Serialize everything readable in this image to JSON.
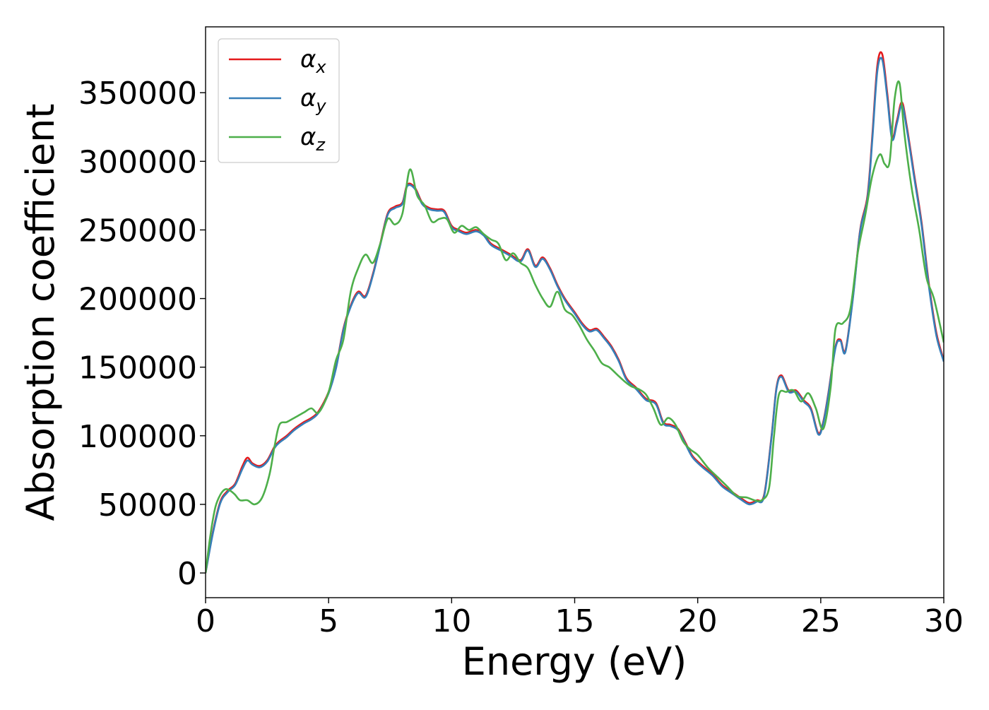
{
  "chart_data": {
    "type": "line",
    "xlabel": "Energy (eV)",
    "ylabel": "Absorption coefficient",
    "xlim": [
      0,
      30
    ],
    "ylim": [
      -18000,
      398000
    ],
    "xticks": [
      0,
      5,
      10,
      15,
      20,
      25,
      30
    ],
    "yticks": [
      0,
      50000,
      100000,
      150000,
      200000,
      250000,
      300000,
      350000
    ],
    "grid": false,
    "legend_position": "top-left",
    "series": [
      {
        "name": "α_x",
        "legend_symbol": "α",
        "legend_subscript": "x",
        "color": "#e41a1c",
        "x": [
          0,
          0.3,
          0.6,
          0.9,
          1.2,
          1.5,
          1.7,
          1.9,
          2.2,
          2.5,
          2.8,
          3.0,
          3.3,
          3.6,
          4.0,
          4.3,
          4.6,
          5.0,
          5.3,
          5.6,
          5.9,
          6.2,
          6.5,
          6.8,
          7.1,
          7.4,
          7.7,
          8.0,
          8.2,
          8.5,
          8.8,
          9.1,
          9.4,
          9.7,
          10.0,
          10.3,
          10.6,
          11.0,
          11.3,
          11.6,
          12.0,
          12.4,
          12.8,
          13.1,
          13.4,
          13.7,
          14.0,
          14.3,
          14.6,
          15.0,
          15.3,
          15.6,
          15.9,
          16.2,
          16.5,
          16.8,
          17.1,
          17.5,
          17.9,
          18.3,
          18.6,
          18.9,
          19.2,
          19.5,
          19.8,
          20.2,
          20.6,
          21.0,
          21.4,
          21.8,
          22.1,
          22.4,
          22.7,
          23.0,
          23.2,
          23.4,
          23.7,
          24.0,
          24.3,
          24.6,
          24.9,
          25.1,
          25.3,
          25.6,
          25.8,
          26.0,
          26.3,
          26.6,
          26.9,
          27.1,
          27.3,
          27.5,
          27.7,
          27.9,
          28.1,
          28.3,
          28.5,
          28.8,
          29.1,
          29.4,
          29.7,
          30.0
        ],
        "y": [
          0,
          30000,
          52000,
          60000,
          65000,
          78000,
          84000,
          80000,
          78000,
          82000,
          92000,
          96000,
          100000,
          105000,
          110000,
          113000,
          118000,
          132000,
          150000,
          178000,
          195000,
          205000,
          202000,
          218000,
          240000,
          262000,
          267000,
          270000,
          283000,
          281000,
          270000,
          266000,
          265000,
          264000,
          253000,
          250000,
          248000,
          250000,
          247000,
          240000,
          236000,
          232000,
          228000,
          236000,
          224000,
          230000,
          222000,
          210000,
          200000,
          190000,
          182000,
          177000,
          178000,
          172000,
          165000,
          155000,
          142000,
          135000,
          127000,
          124000,
          110000,
          108000,
          105000,
          95000,
          85000,
          78000,
          72000,
          64000,
          59000,
          54000,
          51000,
          53000,
          57000,
          100000,
          135000,
          144000,
          133000,
          133000,
          126000,
          120000,
          102000,
          110000,
          130000,
          165000,
          170000,
          162000,
          200000,
          250000,
          275000,
          320000,
          370000,
          378000,
          350000,
          318000,
          330000,
          343000,
          325000,
          290000,
          255000,
          210000,
          175000,
          155000
        ]
      },
      {
        "name": "α_y",
        "legend_symbol": "α",
        "legend_subscript": "y",
        "color": "#377eb8",
        "x": [
          0,
          0.3,
          0.6,
          0.9,
          1.2,
          1.5,
          1.7,
          1.9,
          2.2,
          2.5,
          2.8,
          3.0,
          3.3,
          3.6,
          4.0,
          4.3,
          4.6,
          5.0,
          5.3,
          5.6,
          5.9,
          6.2,
          6.5,
          6.8,
          7.1,
          7.4,
          7.7,
          8.0,
          8.2,
          8.5,
          8.8,
          9.1,
          9.4,
          9.7,
          10.0,
          10.3,
          10.6,
          11.0,
          11.3,
          11.6,
          12.0,
          12.4,
          12.8,
          13.1,
          13.4,
          13.7,
          14.0,
          14.3,
          14.6,
          15.0,
          15.3,
          15.6,
          15.9,
          16.2,
          16.5,
          16.8,
          17.1,
          17.5,
          17.9,
          18.3,
          18.6,
          18.9,
          19.2,
          19.5,
          19.8,
          20.2,
          20.6,
          21.0,
          21.4,
          21.8,
          22.1,
          22.4,
          22.7,
          23.0,
          23.2,
          23.4,
          23.7,
          24.0,
          24.3,
          24.6,
          24.9,
          25.1,
          25.3,
          25.6,
          25.8,
          26.0,
          26.3,
          26.6,
          26.9,
          27.1,
          27.3,
          27.5,
          27.7,
          27.9,
          28.1,
          28.3,
          28.5,
          28.8,
          29.1,
          29.4,
          29.7,
          30.0
        ],
        "y": [
          0,
          29000,
          51000,
          59000,
          64000,
          76000,
          82000,
          79000,
          77000,
          81000,
          91000,
          95000,
          99000,
          104000,
          109000,
          112000,
          117000,
          131000,
          149000,
          177000,
          194000,
          204000,
          201000,
          217000,
          239000,
          261000,
          266000,
          269000,
          282000,
          280000,
          269000,
          265000,
          264000,
          263000,
          252000,
          249000,
          247000,
          249000,
          246000,
          239000,
          235000,
          231000,
          227000,
          235000,
          223000,
          229000,
          221000,
          209000,
          199000,
          189000,
          181000,
          176000,
          177000,
          171000,
          164000,
          154000,
          141000,
          134000,
          126000,
          123000,
          109000,
          107000,
          104000,
          94000,
          84000,
          77000,
          71000,
          63000,
          58000,
          53000,
          50000,
          52000,
          56000,
          99000,
          134000,
          143000,
          132000,
          132000,
          125000,
          119000,
          101000,
          109000,
          129000,
          164000,
          169000,
          161000,
          199000,
          249000,
          273000,
          317000,
          366000,
          374000,
          347000,
          316000,
          328000,
          341000,
          323000,
          288000,
          253000,
          208000,
          173000,
          154000
        ]
      },
      {
        "name": "α_z",
        "legend_symbol": "α",
        "legend_subscript": "z",
        "color": "#4daf4a",
        "x": [
          0,
          0.2,
          0.4,
          0.6,
          0.8,
          1.0,
          1.2,
          1.4,
          1.7,
          2.0,
          2.3,
          2.6,
          2.8,
          3.0,
          3.3,
          3.6,
          4.0,
          4.3,
          4.6,
          5.0,
          5.3,
          5.6,
          5.9,
          6.2,
          6.5,
          6.8,
          7.1,
          7.4,
          7.7,
          8.0,
          8.3,
          8.6,
          8.9,
          9.2,
          9.5,
          9.8,
          10.1,
          10.4,
          10.7,
          11.0,
          11.3,
          11.6,
          11.9,
          12.2,
          12.5,
          12.8,
          13.1,
          13.4,
          13.7,
          14.0,
          14.3,
          14.6,
          14.9,
          15.2,
          15.5,
          15.8,
          16.1,
          16.4,
          16.7,
          17.0,
          17.3,
          17.6,
          17.9,
          18.2,
          18.5,
          18.8,
          19.1,
          19.4,
          19.7,
          20.0,
          20.4,
          20.8,
          21.2,
          21.6,
          22.0,
          22.3,
          22.6,
          22.9,
          23.1,
          23.3,
          23.6,
          23.9,
          24.2,
          24.5,
          24.8,
          25.1,
          25.4,
          25.6,
          25.9,
          26.2,
          26.5,
          26.8,
          27.1,
          27.4,
          27.6,
          27.8,
          28.0,
          28.2,
          28.4,
          28.7,
          29.0,
          29.3,
          29.6,
          30.0
        ],
        "y": [
          0,
          28000,
          48000,
          57000,
          61000,
          60000,
          57000,
          53000,
          53000,
          50000,
          55000,
          72000,
          92000,
          108000,
          110000,
          113000,
          117000,
          120000,
          117000,
          132000,
          155000,
          170000,
          205000,
          222000,
          232000,
          226000,
          240000,
          258000,
          254000,
          262000,
          294000,
          275000,
          268000,
          256000,
          258000,
          258000,
          248000,
          253000,
          250000,
          252000,
          247000,
          243000,
          240000,
          228000,
          233000,
          226000,
          222000,
          210000,
          200000,
          194000,
          205000,
          192000,
          188000,
          180000,
          170000,
          162000,
          153000,
          150000,
          145000,
          140000,
          136000,
          134000,
          130000,
          120000,
          108000,
          113000,
          108000,
          96000,
          90000,
          86000,
          77000,
          70000,
          63000,
          56000,
          55000,
          53000,
          53000,
          62000,
          100000,
          130000,
          132000,
          133000,
          125000,
          131000,
          120000,
          105000,
          135000,
          178000,
          182000,
          192000,
          233000,
          260000,
          290000,
          305000,
          298000,
          300000,
          345000,
          357000,
          320000,
          280000,
          250000,
          215000,
          200000,
          168000
        ]
      }
    ]
  }
}
